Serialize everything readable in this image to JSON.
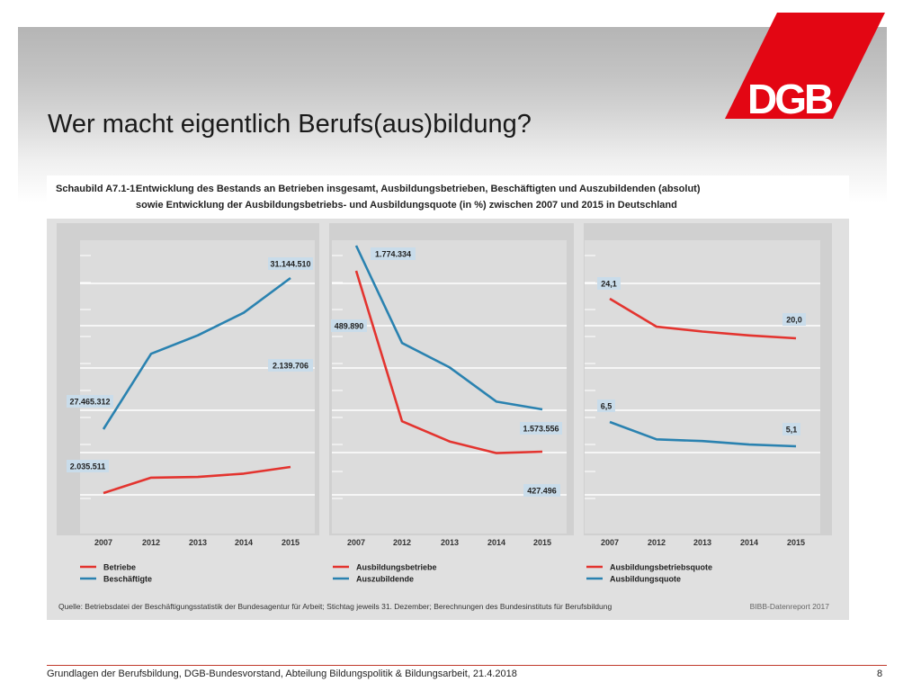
{
  "slide": {
    "title": "Wer macht eigentlich Berufs(aus)bildung?",
    "logo_text": "DGB",
    "footer": "Grundlagen der Berufsbildung, DGB-Bundesvorstand, Abteilung Bildungspolitik & Bildungsarbeit, 21.4.2018",
    "page": "8"
  },
  "figure": {
    "label": "Schaubild A7.1-1:",
    "caption_line1": "Entwicklung des Bestands an Betrieben insgesamt, Ausbildungsbetrieben, Beschäftigten und Auszubildenden (absolut)",
    "caption_line2": "sowie Entwicklung der Ausbildungsbetriebs- und Ausbildungsquote (in %) zwischen 2007 und 2015 in Deutschland",
    "source": "Quelle: Betriebsdatei der Beschäftigungsstatistik der Bundesagentur für Arbeit; Stichtag jeweils 31. Dezember; Berechnungen des Bundesinstituts für Berufsbildung",
    "report": "BIBB-Datenreport 2017"
  },
  "colors": {
    "red": "#e3342f",
    "blue": "#2a82b0",
    "label_bg": "#c9dcea",
    "logo_red": "#e30613"
  },
  "chart_data": [
    {
      "type": "line",
      "x": [
        "2007",
        "2012",
        "2013",
        "2014",
        "2015"
      ],
      "series": [
        {
          "name": "Betriebe",
          "color": "#e3342f",
          "values": [
            2035511,
            2097000,
            2100000,
            2113000,
            2139706
          ]
        },
        {
          "name": "Beschäftigte",
          "color": "#2a82b0",
          "values": [
            27465312,
            29300000,
            29750000,
            30300000,
            31144510
          ]
        }
      ],
      "labels": [
        {
          "text": "31.144.510",
          "series": 1,
          "index": 4
        },
        {
          "text": "2.139.706",
          "series": 0,
          "index": 4
        },
        {
          "text": "27.465.312",
          "series": 1,
          "index": 0
        },
        {
          "text": "2.035.511",
          "series": 0,
          "index": 0
        }
      ]
    },
    {
      "type": "line",
      "x": [
        "2007",
        "2012",
        "2013",
        "2014",
        "2015"
      ],
      "series": [
        {
          "name": "Ausbildungsbetriebe",
          "color": "#e3342f",
          "values": [
            489890,
            438000,
            431000,
            427000,
            427496
          ]
        },
        {
          "name": "Auszubildende",
          "color": "#2a82b0",
          "values": [
            1774334,
            1655000,
            1625000,
            1583000,
            1573556
          ]
        }
      ],
      "labels": [
        {
          "text": "1.774.334",
          "series": 1,
          "index": 0
        },
        {
          "text": "489.890",
          "series": 0,
          "index": 0
        },
        {
          "text": "1.573.556",
          "series": 1,
          "index": 4
        },
        {
          "text": "427.496",
          "series": 0,
          "index": 4
        }
      ]
    },
    {
      "type": "line",
      "x": [
        "2007",
        "2012",
        "2013",
        "2014",
        "2015"
      ],
      "series": [
        {
          "name": "Ausbildungsbetriebsquote",
          "color": "#e3342f",
          "values": [
            24.1,
            21.2,
            20.7,
            20.3,
            20.0
          ]
        },
        {
          "name": "Ausbildungsquote",
          "color": "#2a82b0",
          "values": [
            6.5,
            5.5,
            5.4,
            5.2,
            5.1
          ]
        }
      ],
      "labels": [
        {
          "text": "24,1",
          "series": 0,
          "index": 0
        },
        {
          "text": "20,0",
          "series": 0,
          "index": 4
        },
        {
          "text": "6,5",
          "series": 1,
          "index": 0
        },
        {
          "text": "5,1",
          "series": 1,
          "index": 4
        }
      ]
    }
  ]
}
